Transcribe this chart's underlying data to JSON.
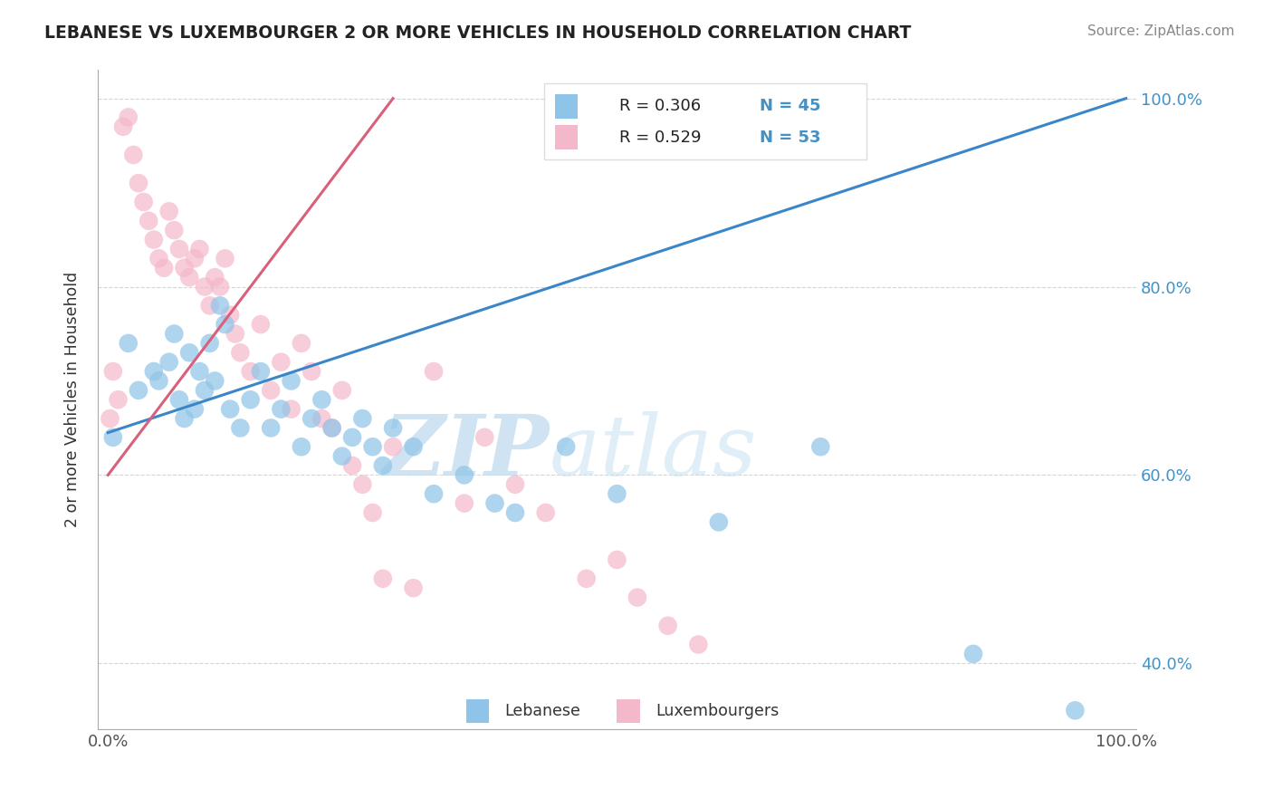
{
  "title": "LEBANESE VS LUXEMBOURGER 2 OR MORE VEHICLES IN HOUSEHOLD CORRELATION CHART",
  "source": "Source: ZipAtlas.com",
  "ylabel": "2 or more Vehicles in Household",
  "x_tick_left": "0.0%",
  "x_tick_right": "100.0%",
  "y_tick_labels": [
    "40.0%",
    "60.0%",
    "80.0%",
    "100.0%"
  ],
  "y_ticks": [
    40,
    60,
    80,
    100
  ],
  "watermark_zip": "ZIP",
  "watermark_atlas": "atlas",
  "legend_r_blue": "R = 0.306",
  "legend_n_blue": "N = 45",
  "legend_r_pink": "R = 0.529",
  "legend_n_pink": "N = 53",
  "legend_label_blue": "Lebanese",
  "legend_label_pink": "Luxembourgers",
  "blue_color": "#8ec4e8",
  "pink_color": "#f4b8cb",
  "trend_blue_color": "#3a86c8",
  "trend_pink_color": "#d9607a",
  "blue_x": [
    0.5,
    2.0,
    3.0,
    4.5,
    5.0,
    6.0,
    6.5,
    7.0,
    7.5,
    8.0,
    8.5,
    9.0,
    9.5,
    10.0,
    10.5,
    11.0,
    11.5,
    12.0,
    13.0,
    14.0,
    15.0,
    16.0,
    17.0,
    18.0,
    19.0,
    20.0,
    21.0,
    22.0,
    23.0,
    24.0,
    25.0,
    26.0,
    27.0,
    28.0,
    30.0,
    32.0,
    35.0,
    38.0,
    40.0,
    45.0,
    50.0,
    60.0,
    70.0,
    85.0,
    95.0
  ],
  "blue_y": [
    64.0,
    74.0,
    69.0,
    71.0,
    70.0,
    72.0,
    75.0,
    68.0,
    66.0,
    73.0,
    67.0,
    71.0,
    69.0,
    74.0,
    70.0,
    78.0,
    76.0,
    67.0,
    65.0,
    68.0,
    71.0,
    65.0,
    67.0,
    70.0,
    63.0,
    66.0,
    68.0,
    65.0,
    62.0,
    64.0,
    66.0,
    63.0,
    61.0,
    65.0,
    63.0,
    58.0,
    60.0,
    57.0,
    56.0,
    63.0,
    58.0,
    55.0,
    63.0,
    41.0,
    35.0
  ],
  "pink_x": [
    0.2,
    0.5,
    1.0,
    1.5,
    2.0,
    2.5,
    3.0,
    3.5,
    4.0,
    4.5,
    5.0,
    5.5,
    6.0,
    6.5,
    7.0,
    7.5,
    8.0,
    8.5,
    9.0,
    9.5,
    10.0,
    10.5,
    11.0,
    11.5,
    12.0,
    12.5,
    13.0,
    14.0,
    15.0,
    16.0,
    17.0,
    18.0,
    19.0,
    20.0,
    21.0,
    22.0,
    23.0,
    24.0,
    25.0,
    26.0,
    27.0,
    28.0,
    30.0,
    32.0,
    35.0,
    37.0,
    40.0,
    43.0,
    47.0,
    50.0,
    52.0,
    55.0,
    58.0
  ],
  "pink_y": [
    66.0,
    71.0,
    68.0,
    97.0,
    98.0,
    94.0,
    91.0,
    89.0,
    87.0,
    85.0,
    83.0,
    82.0,
    88.0,
    86.0,
    84.0,
    82.0,
    81.0,
    83.0,
    84.0,
    80.0,
    78.0,
    81.0,
    80.0,
    83.0,
    77.0,
    75.0,
    73.0,
    71.0,
    76.0,
    69.0,
    72.0,
    67.0,
    74.0,
    71.0,
    66.0,
    65.0,
    69.0,
    61.0,
    59.0,
    56.0,
    49.0,
    63.0,
    48.0,
    71.0,
    57.0,
    64.0,
    59.0,
    56.0,
    49.0,
    51.0,
    47.0,
    44.0,
    42.0
  ],
  "blue_trend_x0": 0,
  "blue_trend_y0": 64.5,
  "blue_trend_x1": 100,
  "blue_trend_y1": 100.0,
  "pink_trend_x0": 0,
  "pink_trend_y0": 60.0,
  "pink_trend_x1": 28,
  "pink_trend_y1": 100.0,
  "xlim_min": -1,
  "xlim_max": 101,
  "ylim_min": 33,
  "ylim_max": 103
}
